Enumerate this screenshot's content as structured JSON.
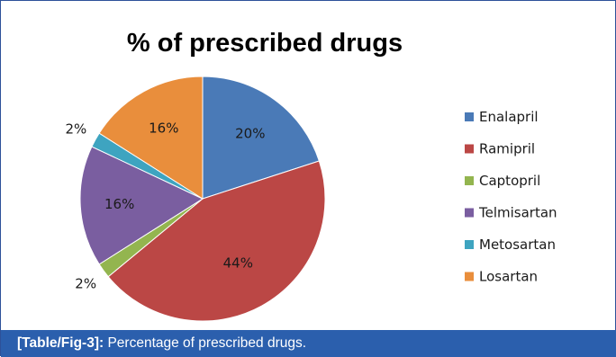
{
  "chart_data": {
    "type": "pie",
    "title": "% of prescribed drugs",
    "categories": [
      "Enalapril",
      "Ramipril",
      "Captopril",
      "Telmisartan",
      "Metosartan",
      "Losartan"
    ],
    "values": [
      20,
      44,
      2,
      16,
      2,
      16
    ],
    "labels": [
      "20%",
      "44%",
      "2%",
      "16%",
      "2%",
      "16%"
    ],
    "colors": [
      "#4a7ab7",
      "#bb4745",
      "#93b54f",
      "#7a5ea0",
      "#3ea4c0",
      "#e98e3c"
    ],
    "legend_position": "right"
  },
  "caption": {
    "label": "[Table/Fig-3]:",
    "text": " Percentage of prescribed drugs."
  }
}
